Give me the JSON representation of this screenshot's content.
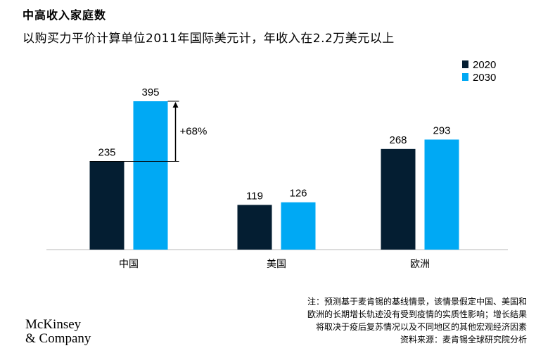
{
  "header": {
    "title": "中高收入家庭数",
    "subtitle": "以购买力平价计算单位2011年国际美元计，年收入在2.2万美元以上"
  },
  "chart_data": {
    "type": "bar",
    "categories": [
      "中国",
      "美国",
      "欧洲"
    ],
    "series": [
      {
        "name": "2020",
        "values": [
          235,
          119,
          268
        ],
        "color": "#041e32"
      },
      {
        "name": "2030",
        "values": [
          395,
          126,
          293
        ],
        "color": "#00a9f4"
      }
    ],
    "ylim": [
      0,
      395
    ],
    "grid": false,
    "legend": "top-right",
    "annotations": [
      {
        "category": "中国",
        "text": "+68%"
      }
    ]
  },
  "footnote": {
    "lines": [
      "注：预测基于麦肯锡的基线情景，该情景假定中国、美国和",
      "欧洲的长期增长轨迹没有受到疫情的实质性影响；增长结果",
      "将取决于疫后复苏情况以及不同地区的其他宏观经济因素",
      "资料来源：麦肯锡全球研究院分析"
    ]
  },
  "brand": {
    "line1": "McKinsey",
    "line2": "& Company"
  }
}
